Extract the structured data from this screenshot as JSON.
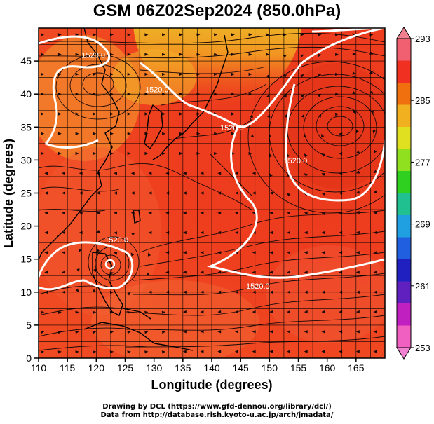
{
  "title": "GSM 06Z02Sep2024 (850.0hPa)",
  "axes": {
    "xlabel": "Longitude (degrees)",
    "ylabel": "Latitude (degrees)",
    "xlim": [
      110,
      170
    ],
    "ylim": [
      0,
      50
    ],
    "xticks": [
      110,
      115,
      120,
      125,
      130,
      135,
      140,
      145,
      150,
      155,
      160,
      165
    ],
    "yticks": [
      0,
      5,
      10,
      15,
      20,
      25,
      30,
      35,
      40,
      45
    ]
  },
  "colorbar": {
    "ticks": [
      "293",
      "285",
      "277",
      "269",
      "261",
      "253"
    ],
    "colors": [
      "#f06070",
      "#f03020",
      "#f07010",
      "#f0b020",
      "#e0e020",
      "#90e020",
      "#30d020",
      "#20c090",
      "#20a0e0",
      "#2060e0",
      "#2020c0",
      "#6020c0",
      "#c020c0",
      "#f060c0"
    ]
  },
  "contours": [
    {
      "label": "1520.0",
      "lon": 119.5,
      "lat": 45.5
    },
    {
      "label": "1520.0",
      "lon": 130.5,
      "lat": 40.3
    },
    {
      "label": "1520.0",
      "lon": 143.5,
      "lat": 34.5
    },
    {
      "label": "1520.0",
      "lon": 154.5,
      "lat": 29.5
    },
    {
      "label": "1520.0",
      "lon": 123.5,
      "lat": 17.5
    },
    {
      "label": "1520.0",
      "lon": 148.0,
      "lat": 10.5
    }
  ],
  "credits": [
    "Drawing by DCL (https://www.gfd-dennou.org/library/dcl/)",
    "Data from http://database.rish.kyoto-u.ac.jp/arch/jmadata/"
  ]
}
